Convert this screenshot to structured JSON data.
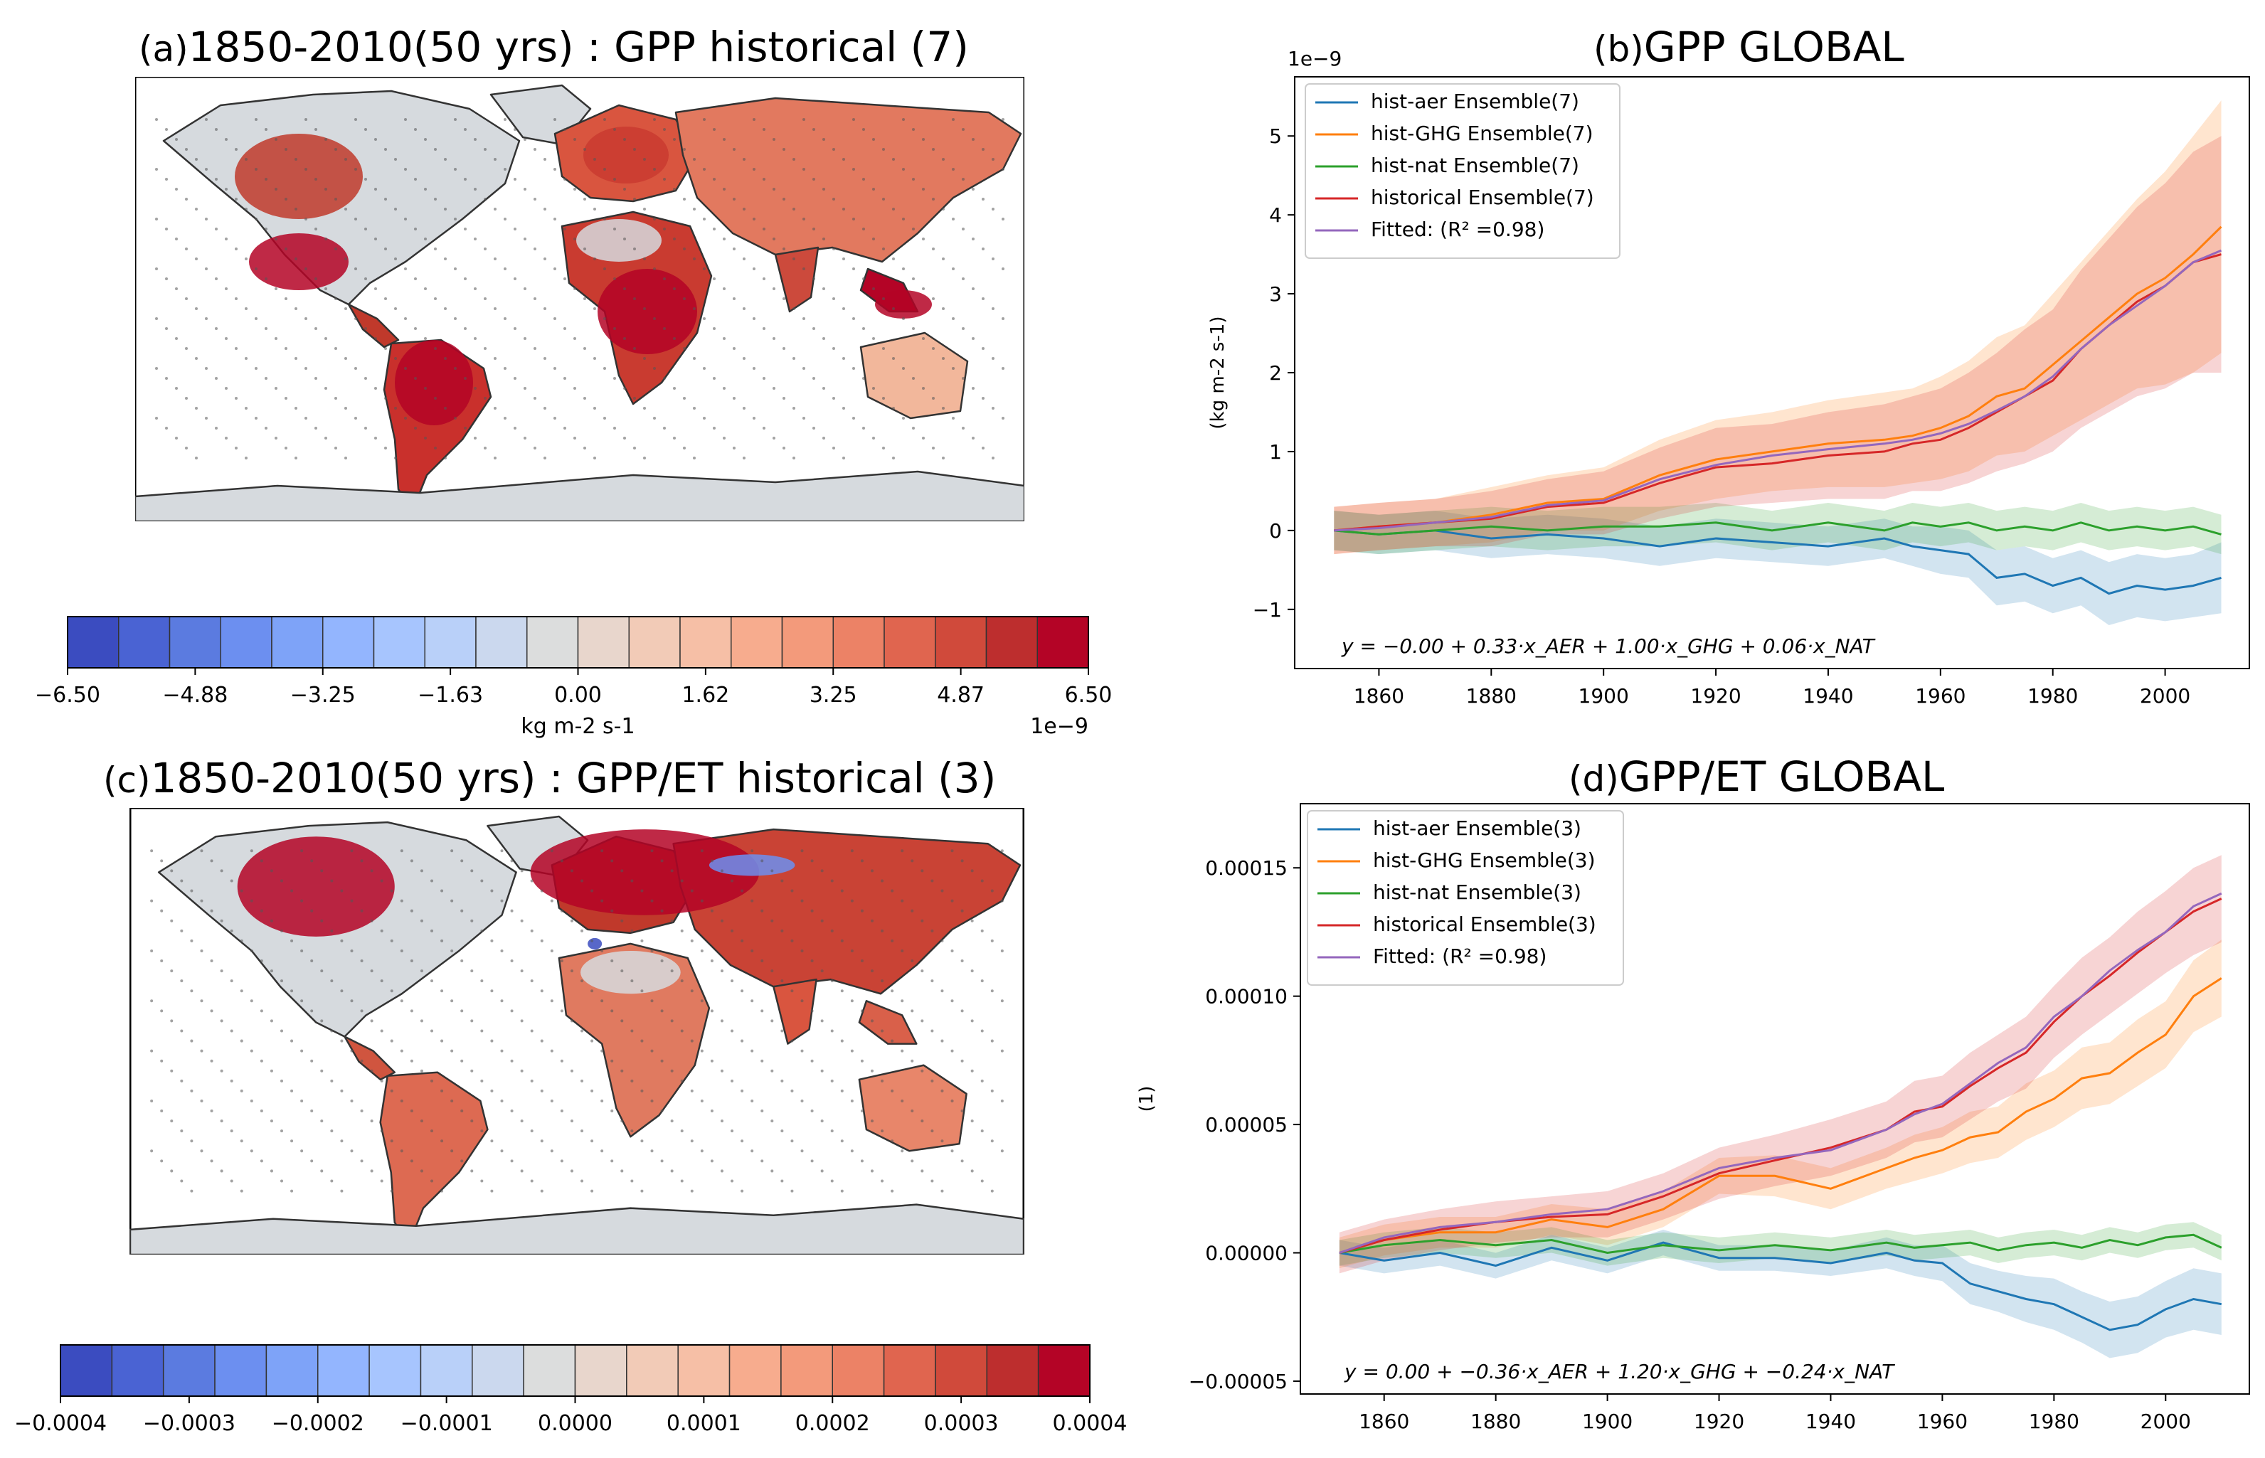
{
  "panels": {
    "a": {
      "label": "(a)",
      "title": "1850-2010(50 yrs) : GPP historical (7)"
    },
    "b": {
      "label": "(b)",
      "title": "GPP GLOBAL"
    },
    "c": {
      "label": "(c)",
      "title": "1850-2010(50 yrs) : GPP/ET historical (3)"
    },
    "d": {
      "label": "(d)",
      "title": "GPP/ET GLOBAL"
    }
  },
  "colorbar_a": {
    "ticks": [
      "−6.50",
      "−4.88",
      "−3.25",
      "−1.63",
      "0.00",
      "1.62",
      "3.25",
      "4.87",
      "6.50"
    ],
    "label": "kg m-2 s-1",
    "offset": "1e−9",
    "colors": [
      "#3b4cc0",
      "#4a63d3",
      "#5b7be0",
      "#6c8ff0",
      "#7ea3f8",
      "#93b5fe",
      "#a7c5fe",
      "#b9d0f9",
      "#cbd8ee",
      "#dcdddd",
      "#e8d6cc",
      "#f2cbb7",
      "#f6bfa6",
      "#f7ac8e",
      "#f39a7b",
      "#ec8266",
      "#e0654f",
      "#d04a3b",
      "#bd2e2e",
      "#b40426"
    ]
  },
  "colorbar_c": {
    "ticks": [
      "−0.0004",
      "−0.0003",
      "−0.0002",
      "−0.0001",
      "0.0000",
      "0.0001",
      "0.0002",
      "0.0003",
      "0.0004"
    ],
    "colors": [
      "#3b4cc0",
      "#4a63d3",
      "#5b7be0",
      "#6c8ff0",
      "#7ea3f8",
      "#93b5fe",
      "#a7c5fe",
      "#b9d0f9",
      "#cbd8ee",
      "#dcdddd",
      "#e8d6cc",
      "#f2cbb7",
      "#f6bfa6",
      "#f7ac8e",
      "#f39a7b",
      "#ec8266",
      "#e0654f",
      "#d04a3b",
      "#bd2e2e",
      "#b40426"
    ]
  },
  "map_colors": {
    "ocean": "#ffffff",
    "neutral": "#d6dade",
    "warm": "#d44a3a",
    "hot": "#b40426",
    "light": "#f2b79b",
    "cool": "#6c8ff0",
    "coast": "#333333"
  },
  "chart_data": [
    {
      "type": "line",
      "panel": "b",
      "title": "GPP GLOBAL",
      "ylabel": "(kg m-2 s-1)",
      "offset_text": "1e−9",
      "xlim": [
        1845,
        2015
      ],
      "ylim": [
        -1.75,
        5.75
      ],
      "xticks": [
        1860,
        1880,
        1900,
        1920,
        1940,
        1960,
        1980,
        2000
      ],
      "yticks": [
        -1,
        0,
        1,
        2,
        3,
        4,
        5
      ],
      "ytick_labels": [
        "−1",
        "0",
        "1",
        "2",
        "3",
        "4",
        "5"
      ],
      "legend": {
        "placement": "top-left"
      },
      "equation": "y = −0.00 + 0.33·x_AER + 1.00·x_GHG + 0.06·x_NAT",
      "series": [
        {
          "name": "hist-aer Ensemble(7)",
          "color": "#1f77b4",
          "shade": true,
          "x": [
            1852,
            1860,
            1870,
            1880,
            1890,
            1900,
            1910,
            1920,
            1930,
            1940,
            1950,
            1955,
            1960,
            1965,
            1970,
            1975,
            1980,
            1985,
            1990,
            1995,
            2000,
            2005,
            2010
          ],
          "y": [
            0,
            -0.05,
            0,
            -0.1,
            -0.05,
            -0.1,
            -0.2,
            -0.1,
            -0.15,
            -0.2,
            -0.1,
            -0.2,
            -0.25,
            -0.3,
            -0.6,
            -0.55,
            -0.7,
            -0.6,
            -0.8,
            -0.7,
            -0.75,
            -0.7,
            -0.6
          ],
          "band": [
            0.25,
            0.25,
            0.25,
            0.25,
            0.25,
            0.25,
            0.25,
            0.25,
            0.25,
            0.25,
            0.25,
            0.25,
            0.3,
            0.3,
            0.35,
            0.35,
            0.35,
            0.35,
            0.4,
            0.4,
            0.4,
            0.4,
            0.45
          ]
        },
        {
          "name": "hist-GHG Ensemble(7)",
          "color": "#ff7f0e",
          "shade": true,
          "x": [
            1852,
            1860,
            1870,
            1880,
            1890,
            1900,
            1910,
            1920,
            1930,
            1940,
            1950,
            1955,
            1960,
            1965,
            1970,
            1975,
            1980,
            1985,
            1990,
            1995,
            2000,
            2005,
            2010
          ],
          "y": [
            0,
            0.05,
            0.1,
            0.2,
            0.35,
            0.4,
            0.7,
            0.9,
            1.0,
            1.1,
            1.15,
            1.2,
            1.3,
            1.45,
            1.7,
            1.8,
            2.1,
            2.4,
            2.7,
            3.0,
            3.2,
            3.5,
            3.85
          ],
          "band": [
            0.3,
            0.3,
            0.3,
            0.35,
            0.35,
            0.4,
            0.45,
            0.5,
            0.5,
            0.55,
            0.6,
            0.6,
            0.65,
            0.7,
            0.75,
            0.8,
            0.9,
            1.0,
            1.1,
            1.2,
            1.35,
            1.5,
            1.6
          ]
        },
        {
          "name": "hist-nat Ensemble(7)",
          "color": "#2ca02c",
          "shade": true,
          "x": [
            1852,
            1860,
            1870,
            1880,
            1890,
            1900,
            1910,
            1920,
            1930,
            1940,
            1950,
            1955,
            1960,
            1965,
            1970,
            1975,
            1980,
            1985,
            1990,
            1995,
            2000,
            2005,
            2010
          ],
          "y": [
            0,
            -0.05,
            0,
            0.05,
            0,
            0.05,
            0.05,
            0.1,
            0,
            0.1,
            0,
            0.1,
            0.05,
            0.1,
            0,
            0.05,
            0,
            0.1,
            0,
            0.05,
            0,
            0.05,
            -0.05
          ],
          "band": [
            0.25,
            0.25,
            0.25,
            0.25,
            0.25,
            0.25,
            0.25,
            0.25,
            0.25,
            0.25,
            0.25,
            0.25,
            0.25,
            0.25,
            0.25,
            0.25,
            0.25,
            0.25,
            0.25,
            0.25,
            0.25,
            0.25,
            0.25
          ]
        },
        {
          "name": "historical Ensemble(7)",
          "color": "#d62728",
          "shade": true,
          "x": [
            1852,
            1860,
            1870,
            1880,
            1890,
            1900,
            1910,
            1920,
            1930,
            1940,
            1950,
            1955,
            1960,
            1965,
            1970,
            1975,
            1980,
            1985,
            1990,
            1995,
            2000,
            2005,
            2010
          ],
          "y": [
            0,
            0.05,
            0.1,
            0.15,
            0.3,
            0.35,
            0.6,
            0.8,
            0.85,
            0.95,
            1.0,
            1.1,
            1.15,
            1.3,
            1.5,
            1.7,
            1.9,
            2.3,
            2.6,
            2.9,
            3.1,
            3.4,
            3.5
          ],
          "band": [
            0.3,
            0.3,
            0.3,
            0.35,
            0.35,
            0.4,
            0.45,
            0.5,
            0.5,
            0.55,
            0.6,
            0.6,
            0.65,
            0.7,
            0.75,
            0.85,
            0.9,
            1.0,
            1.1,
            1.2,
            1.3,
            1.4,
            1.5
          ]
        },
        {
          "name": "Fitted:  (R² =0.98)",
          "color": "#9467bd",
          "shade": false,
          "x": [
            1852,
            1860,
            1870,
            1880,
            1890,
            1900,
            1910,
            1920,
            1930,
            1940,
            1950,
            1955,
            1960,
            1965,
            1970,
            1975,
            1980,
            1985,
            1990,
            1995,
            2000,
            2005,
            2010
          ],
          "y": [
            0,
            0.03,
            0.1,
            0.17,
            0.32,
            0.38,
            0.65,
            0.83,
            0.95,
            1.03,
            1.1,
            1.15,
            1.23,
            1.35,
            1.52,
            1.7,
            1.95,
            2.3,
            2.6,
            2.85,
            3.1,
            3.4,
            3.55
          ]
        }
      ]
    },
    {
      "type": "line",
      "panel": "d",
      "title": "GPP/ET GLOBAL",
      "ylabel": "(1)",
      "xlim": [
        1845,
        2015
      ],
      "ylim": [
        -5.5e-05,
        0.000175
      ],
      "xticks": [
        1860,
        1880,
        1900,
        1920,
        1940,
        1960,
        1980,
        2000
      ],
      "yticks": [
        -5e-05,
        0,
        5e-05,
        0.0001,
        0.00015
      ],
      "ytick_labels": [
        "−0.00005",
        "0.00000",
        "0.00005",
        "0.00010",
        "0.00015"
      ],
      "legend": {
        "placement": "top-left"
      },
      "equation": "y = 0.00 + −0.36·x_AER + 1.20·x_GHG + −0.24·x_NAT",
      "series": [
        {
          "name": "hist-aer Ensemble(3)",
          "color": "#1f77b4",
          "shade": true,
          "x": [
            1852,
            1860,
            1870,
            1880,
            1890,
            1900,
            1910,
            1920,
            1930,
            1940,
            1950,
            1955,
            1960,
            1965,
            1970,
            1975,
            1980,
            1985,
            1990,
            1995,
            2000,
            2005,
            2010
          ],
          "y": [
            0,
            -3e-06,
            0,
            -5e-06,
            2e-06,
            -3e-06,
            4e-06,
            -2e-06,
            -2e-06,
            -4e-06,
            0,
            -3e-06,
            -4e-06,
            -1.2e-05,
            -1.5e-05,
            -1.8e-05,
            -2e-05,
            -2.5e-05,
            -3e-05,
            -2.8e-05,
            -2.2e-05,
            -1.8e-05,
            -2e-05
          ],
          "band": [
            5e-06,
            5e-06,
            5e-06,
            5e-06,
            5e-06,
            5e-06,
            5e-06,
            5e-06,
            5e-06,
            5e-06,
            6e-06,
            6e-06,
            7e-06,
            8e-06,
            8e-06,
            9e-06,
            1e-05,
            1e-05,
            1.1e-05,
            1.1e-05,
            1.1e-05,
            1.2e-05,
            1.2e-05
          ]
        },
        {
          "name": "hist-GHG Ensemble(3)",
          "color": "#ff7f0e",
          "shade": true,
          "x": [
            1852,
            1860,
            1870,
            1880,
            1890,
            1900,
            1910,
            1920,
            1930,
            1940,
            1950,
            1955,
            1960,
            1965,
            1970,
            1975,
            1980,
            1985,
            1990,
            1995,
            2000,
            2005,
            2010
          ],
          "y": [
            0,
            5e-06,
            8e-06,
            8e-06,
            1.3e-05,
            1e-05,
            1.7e-05,
            3e-05,
            3e-05,
            2.5e-05,
            3.3e-05,
            3.7e-05,
            4e-05,
            4.5e-05,
            4.7e-05,
            5.5e-05,
            6e-05,
            6.8e-05,
            7e-05,
            7.8e-05,
            8.5e-05,
            0.0001,
            0.000107
          ],
          "band": [
            6e-06,
            6e-06,
            6e-06,
            6e-06,
            6e-06,
            7e-06,
            7e-06,
            7e-06,
            8e-06,
            8e-06,
            8e-06,
            9e-06,
            9e-06,
            1e-05,
            1e-05,
            1.1e-05,
            1.1e-05,
            1.2e-05,
            1.2e-05,
            1.3e-05,
            1.3e-05,
            1.4e-05,
            1.5e-05
          ]
        },
        {
          "name": "hist-nat Ensemble(3)",
          "color": "#2ca02c",
          "shade": true,
          "x": [
            1852,
            1860,
            1870,
            1880,
            1890,
            1900,
            1910,
            1920,
            1930,
            1940,
            1950,
            1955,
            1960,
            1965,
            1970,
            1975,
            1980,
            1985,
            1990,
            1995,
            2000,
            2005,
            2010
          ],
          "y": [
            0,
            3e-06,
            5e-06,
            3e-06,
            5e-06,
            0,
            3e-06,
            1e-06,
            3e-06,
            1e-06,
            4e-06,
            2e-06,
            3e-06,
            4e-06,
            1e-06,
            3e-06,
            4e-06,
            2e-06,
            5e-06,
            3e-06,
            6e-06,
            7e-06,
            2e-06
          ],
          "band": [
            5e-06,
            5e-06,
            5e-06,
            5e-06,
            5e-06,
            5e-06,
            5e-06,
            5e-06,
            5e-06,
            5e-06,
            5e-06,
            5e-06,
            5e-06,
            5e-06,
            5e-06,
            5e-06,
            5e-06,
            5e-06,
            5e-06,
            5e-06,
            5e-06,
            5e-06,
            5e-06
          ]
        },
        {
          "name": "historical Ensemble(3)",
          "color": "#d62728",
          "shade": true,
          "x": [
            1852,
            1860,
            1870,
            1880,
            1890,
            1900,
            1910,
            1920,
            1930,
            1940,
            1950,
            1955,
            1960,
            1965,
            1970,
            1975,
            1980,
            1985,
            1990,
            1995,
            2000,
            2005,
            2010
          ],
          "y": [
            0,
            5e-06,
            9e-06,
            1.2e-05,
            1.4e-05,
            1.5e-05,
            2.2e-05,
            3.1e-05,
            3.6e-05,
            4.1e-05,
            4.8e-05,
            5.5e-05,
            5.7e-05,
            6.5e-05,
            7.2e-05,
            7.8e-05,
            9e-05,
            0.0001,
            0.000108,
            0.000117,
            0.000125,
            0.000133,
            0.000138
          ],
          "band": [
            8e-06,
            8e-06,
            8e-06,
            8e-06,
            8e-06,
            9e-06,
            9e-06,
            1e-05,
            1e-05,
            1.1e-05,
            1.1e-05,
            1.2e-05,
            1.2e-05,
            1.3e-05,
            1.3e-05,
            1.4e-05,
            1.4e-05,
            1.5e-05,
            1.5e-05,
            1.6e-05,
            1.6e-05,
            1.7e-05,
            1.7e-05
          ]
        },
        {
          "name": "Fitted:  (R² =0.98)",
          "color": "#9467bd",
          "shade": false,
          "x": [
            1852,
            1860,
            1870,
            1880,
            1890,
            1900,
            1910,
            1920,
            1930,
            1940,
            1950,
            1955,
            1960,
            1965,
            1970,
            1975,
            1980,
            1985,
            1990,
            1995,
            2000,
            2005,
            2010
          ],
          "y": [
            0,
            6e-06,
            1e-05,
            1.2e-05,
            1.5e-05,
            1.7e-05,
            2.4e-05,
            3.3e-05,
            3.7e-05,
            4e-05,
            4.8e-05,
            5.4e-05,
            5.8e-05,
            6.6e-05,
            7.4e-05,
            8e-05,
            9.2e-05,
            0.0001,
            0.00011,
            0.000118,
            0.000125,
            0.000135,
            0.00014
          ]
        }
      ]
    }
  ]
}
